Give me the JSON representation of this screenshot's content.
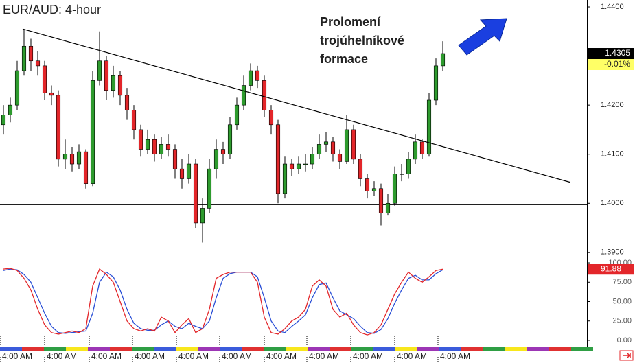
{
  "chart_data": [
    {
      "type": "candlestick",
      "title": "EUR/AUD: 4-hour",
      "open": [
        1.416,
        1.418,
        1.42,
        1.427,
        1.432,
        1.429,
        1.428,
        1.4225,
        1.422,
        1.409,
        1.41,
        1.408,
        1.4105,
        1.404,
        1.425,
        1.429,
        1.423,
        1.426,
        1.422,
        1.419,
        1.415,
        1.411,
        1.413,
        1.41,
        1.412,
        1.411,
        1.407,
        1.405,
        1.408,
        1.396,
        1.399,
        1.407,
        1.411,
        1.41,
        1.416,
        1.42,
        1.424,
        1.427,
        1.425,
        1.419,
        1.416,
        1.402,
        1.408,
        1.407,
        1.408,
        1.408,
        1.41,
        1.412,
        1.4125,
        1.41,
        1.4085,
        1.415,
        1.409,
        1.405,
        1.4025,
        1.403,
        1.398,
        1.4,
        1.406,
        1.406,
        1.409,
        1.4125,
        1.41,
        1.421,
        1.428
      ],
      "high": [
        1.42,
        1.4215,
        1.429,
        1.4355,
        1.4335,
        1.431,
        1.429,
        1.424,
        1.423,
        1.413,
        1.4115,
        1.412,
        1.411,
        1.427,
        1.435,
        1.43,
        1.428,
        1.427,
        1.4235,
        1.42,
        1.416,
        1.415,
        1.414,
        1.4135,
        1.414,
        1.412,
        1.409,
        1.41,
        1.409,
        1.401,
        1.409,
        1.413,
        1.4125,
        1.4175,
        1.4215,
        1.426,
        1.4285,
        1.428,
        1.426,
        1.42,
        1.417,
        1.4095,
        1.409,
        1.4095,
        1.41,
        1.4115,
        1.414,
        1.4145,
        1.4135,
        1.411,
        1.418,
        1.416,
        1.41,
        1.406,
        1.4045,
        1.404,
        1.402,
        1.4075,
        1.408,
        1.4105,
        1.414,
        1.413,
        1.4225,
        1.4295,
        1.433
      ],
      "low": [
        1.414,
        1.4165,
        1.419,
        1.426,
        1.427,
        1.426,
        1.421,
        1.42,
        1.4075,
        1.407,
        1.4065,
        1.407,
        1.403,
        1.4035,
        1.424,
        1.421,
        1.4215,
        1.42,
        1.417,
        1.413,
        1.4095,
        1.41,
        1.4085,
        1.409,
        1.4095,
        1.405,
        1.403,
        1.404,
        1.395,
        1.392,
        1.398,
        1.405,
        1.408,
        1.409,
        1.415,
        1.419,
        1.423,
        1.4235,
        1.4175,
        1.414,
        1.4,
        1.401,
        1.4055,
        1.406,
        1.4065,
        1.407,
        1.409,
        1.4105,
        1.4085,
        1.407,
        1.408,
        1.408,
        1.4035,
        1.401,
        1.4015,
        1.3955,
        1.3975,
        1.3995,
        1.4045,
        1.405,
        1.408,
        1.409,
        1.4095,
        1.42,
        1.427
      ],
      "close": [
        1.418,
        1.42,
        1.427,
        1.432,
        1.429,
        1.428,
        1.4225,
        1.422,
        1.409,
        1.41,
        1.408,
        1.4105,
        1.404,
        1.425,
        1.429,
        1.423,
        1.426,
        1.422,
        1.419,
        1.415,
        1.411,
        1.413,
        1.41,
        1.412,
        1.411,
        1.407,
        1.405,
        1.408,
        1.396,
        1.399,
        1.407,
        1.411,
        1.41,
        1.416,
        1.42,
        1.424,
        1.427,
        1.425,
        1.419,
        1.416,
        1.402,
        1.408,
        1.407,
        1.408,
        1.408,
        1.41,
        1.412,
        1.4125,
        1.41,
        1.4085,
        1.415,
        1.409,
        1.405,
        1.4025,
        1.403,
        1.398,
        1.4,
        1.406,
        1.406,
        1.409,
        1.4125,
        1.41,
        1.421,
        1.428,
        1.4305
      ],
      "up_color": "#2e9b2e",
      "down_color": "#e3262a",
      "xlim": [
        -0.5,
        85
      ],
      "ylim": [
        1.389,
        1.4414
      ],
      "yticks": [
        {
          "value": 1.44,
          "label": "1.4400"
        },
        {
          "value": 1.43,
          "label": "1.4300"
        },
        {
          "value": 1.42,
          "label": "1.4200"
        },
        {
          "value": 1.41,
          "label": "1.4100"
        },
        {
          "value": 1.4,
          "label": "1.4000"
        },
        {
          "value": 1.39,
          "label": "1.3900"
        }
      ],
      "last_change": "-0.01%",
      "trendline": {
        "x": [
          2.8,
          82.5
        ],
        "y": [
          1.4355,
          1.4043
        ]
      },
      "support": 1.3997,
      "annotation": [
        "Prolomení",
        "trojúhelníkové",
        "formace"
      ]
    },
    {
      "type": "line",
      "series": [
        {
          "color": "#e3262a",
          "values": [
            92,
            93,
            90,
            80,
            65,
            40,
            20,
            10,
            8,
            10,
            12,
            10,
            15,
            70,
            92,
            85,
            75,
            50,
            25,
            15,
            12,
            15,
            12,
            30,
            25,
            10,
            20,
            28,
            10,
            15,
            40,
            80,
            85,
            88,
            88,
            88,
            88,
            75,
            30,
            10,
            8,
            15,
            25,
            30,
            40,
            70,
            78,
            70,
            40,
            30,
            35,
            20,
            10,
            7,
            10,
            20,
            40,
            60,
            75,
            88,
            80,
            75,
            82,
            90,
            91.88
          ]
        },
        {
          "color": "#2a4fd6",
          "values": [
            90,
            92,
            91,
            85,
            75,
            55,
            35,
            18,
            10,
            9,
            10,
            11,
            12,
            35,
            75,
            88,
            82,
            65,
            40,
            22,
            15,
            13,
            13,
            20,
            25,
            18,
            15,
            22,
            18,
            15,
            25,
            55,
            80,
            86,
            88,
            88,
            88,
            82,
            55,
            25,
            12,
            10,
            18,
            25,
            33,
            55,
            72,
            74,
            55,
            38,
            33,
            28,
            18,
            10,
            9,
            14,
            28,
            48,
            65,
            80,
            84,
            78,
            78,
            86,
            91
          ]
        }
      ],
      "xlim": [
        -0.5,
        85
      ],
      "ylim": [
        -8,
        102.7
      ],
      "yticks": [
        {
          "value": 100,
          "label": "100.00"
        },
        {
          "value": 75,
          "label": "75.00"
        },
        {
          "value": 50,
          "label": "50.00"
        },
        {
          "value": 25,
          "label": "25.00"
        },
        {
          "value": 0,
          "label": "0.00"
        }
      ],
      "xticks": [
        {
          "value": 0,
          "label": "4:00 AM"
        },
        {
          "value": 6.5,
          "label": "4:00 AM"
        },
        {
          "value": 13,
          "label": "4:00 AM"
        },
        {
          "value": 19.3,
          "label": "4:00 AM"
        },
        {
          "value": 25.7,
          "label": "4:00 AM"
        },
        {
          "value": 32,
          "label": "4:00 AM"
        },
        {
          "value": 38.5,
          "label": "4:00 AM"
        },
        {
          "value": 44.7,
          "label": "4:00 AM"
        },
        {
          "value": 51.1,
          "label": "4:00 AM"
        },
        {
          "value": 57.5,
          "label": "4:00 AM"
        },
        {
          "value": 63.8,
          "label": "4:00 AM"
        }
      ]
    }
  ]
}
